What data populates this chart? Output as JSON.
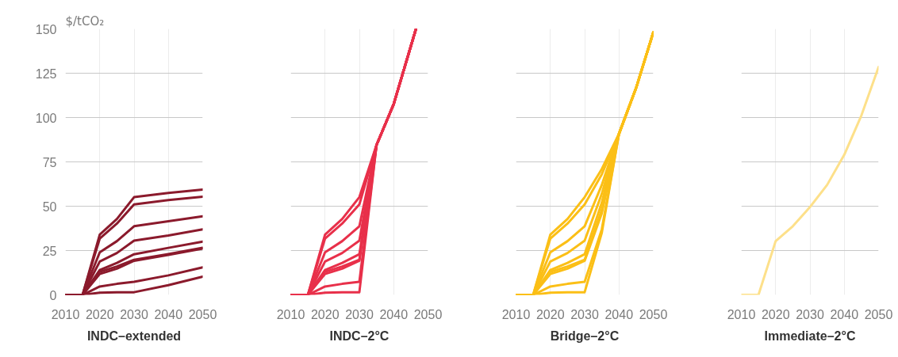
{
  "chart_data": [
    {
      "type": "line",
      "xlabel": "INDC–extended",
      "ylabel": "$/tCO₂",
      "x": [
        2010,
        2015,
        2020,
        2025,
        2030,
        2040,
        2050
      ],
      "xlim": [
        2010,
        2050
      ],
      "xticks": [
        2010,
        2020,
        2030,
        2040,
        2050
      ],
      "ylim": [
        0,
        150
      ],
      "yticks": [
        0,
        25,
        50,
        75,
        100,
        125,
        150
      ],
      "grid": true,
      "series": [
        {
          "color": "#8b1a2c",
          "values": [
            0,
            0,
            34,
            42.8,
            55.1,
            57.5,
            59.4
          ]
        },
        {
          "color": "#8b1a2c",
          "values": [
            0,
            0,
            31.8,
            40.2,
            51,
            53.5,
            55.4
          ]
        },
        {
          "color": "#8b1a2c",
          "values": [
            0,
            0,
            24,
            30.3,
            38.7,
            41.5,
            44.3
          ]
        },
        {
          "color": "#8b1a2c",
          "values": [
            0,
            0,
            18.8,
            23.6,
            30.6,
            33.5,
            36.9
          ]
        },
        {
          "color": "#8b1a2c",
          "values": [
            0,
            0,
            14,
            18,
            22.9,
            26.5,
            30
          ]
        },
        {
          "color": "#8b1a2c",
          "values": [
            0,
            0,
            13,
            16,
            19.8,
            23,
            26.6
          ]
        },
        {
          "color": "#8b1a2c",
          "values": [
            0,
            0,
            11.8,
            14.8,
            19.2,
            22.5,
            26.1
          ]
        },
        {
          "color": "#8b1a2c",
          "values": [
            0,
            0,
            4.7,
            6.2,
            7.4,
            11,
            15.5
          ]
        },
        {
          "color": "#8b1a2c",
          "values": [
            0,
            0,
            1.2,
            1.5,
            1.5,
            5.5,
            10.3
          ]
        }
      ]
    },
    {
      "type": "line",
      "xlabel": "INDC–2°C",
      "x": [
        2010,
        2015,
        2020,
        2025,
        2030,
        2035,
        2040,
        2046.5
      ],
      "xlim": [
        2010,
        2050
      ],
      "xticks": [
        2010,
        2020,
        2030,
        2040,
        2050
      ],
      "ylim": [
        0,
        150
      ],
      "yticks": [
        0,
        25,
        50,
        75,
        100,
        125,
        150
      ],
      "grid": true,
      "tick_labels": "x",
      "series": [
        {
          "color": "#e8304a",
          "values": [
            0,
            0,
            34,
            42.8,
            55.1,
            84.5,
            107.5,
            150
          ]
        },
        {
          "color": "#e8304a",
          "values": [
            0,
            0,
            31.8,
            40.2,
            51,
            84.5,
            107.5,
            150
          ]
        },
        {
          "color": "#e8304a",
          "values": [
            0,
            0,
            24,
            30.3,
            38.7,
            84.5,
            107.5,
            150
          ]
        },
        {
          "color": "#e8304a",
          "values": [
            0,
            0,
            18.8,
            23.6,
            30.6,
            84.5,
            107.5,
            150
          ]
        },
        {
          "color": "#e8304a",
          "values": [
            0,
            0,
            14,
            18,
            22.9,
            84.5,
            107.5,
            150
          ]
        },
        {
          "color": "#e8304a",
          "values": [
            0,
            0,
            13,
            16,
            19.8,
            84.5,
            107.5,
            150
          ]
        },
        {
          "color": "#e8304a",
          "values": [
            0,
            0,
            11.8,
            14.8,
            19.2,
            84.5,
            107.5,
            150
          ]
        },
        {
          "color": "#e8304a",
          "values": [
            0,
            0,
            4.7,
            6.2,
            7.4,
            84.5,
            107.5,
            150
          ]
        },
        {
          "color": "#e8304a",
          "values": [
            0,
            0,
            1.2,
            1.5,
            1.5,
            84.5,
            107.5,
            150
          ]
        }
      ]
    },
    {
      "type": "line",
      "xlabel": "Bridge–2°C",
      "x": [
        2010,
        2015,
        2020,
        2025,
        2030,
        2035,
        2040,
        2045,
        2050
      ],
      "xlim": [
        2010,
        2050
      ],
      "xticks": [
        2010,
        2020,
        2030,
        2040,
        2050
      ],
      "ylim": [
        0,
        150
      ],
      "yticks": [
        0,
        25,
        50,
        75,
        100,
        125,
        150
      ],
      "grid": true,
      "tick_labels": "x",
      "series": [
        {
          "color": "#fbbf16",
          "values": [
            0,
            0,
            34,
            42.8,
            55.1,
            71,
            90.8,
            116.7,
            148
          ]
        },
        {
          "color": "#fbbf16",
          "values": [
            0,
            0,
            31.8,
            40.2,
            51,
            68,
            90.8,
            116.7,
            148
          ]
        },
        {
          "color": "#fbbf16",
          "values": [
            0,
            0,
            24,
            30.3,
            38.7,
            62,
            90.8,
            116.7,
            148
          ]
        },
        {
          "color": "#fbbf16",
          "values": [
            0,
            0,
            18.8,
            23.6,
            30.6,
            57,
            90.8,
            116.7,
            148
          ]
        },
        {
          "color": "#fbbf16",
          "values": [
            0,
            0,
            14,
            18,
            22.9,
            52,
            90.8,
            116.7,
            148
          ]
        },
        {
          "color": "#fbbf16",
          "values": [
            0,
            0,
            13,
            16,
            19.8,
            48,
            90.8,
            116.7,
            148
          ]
        },
        {
          "color": "#fbbf16",
          "values": [
            0,
            0,
            11.8,
            14.8,
            19.2,
            46,
            90.8,
            116.7,
            148
          ]
        },
        {
          "color": "#fbbf16",
          "values": [
            0,
            0,
            4.7,
            6.2,
            7.4,
            37,
            90.8,
            116.7,
            148
          ]
        },
        {
          "color": "#fbbf16",
          "values": [
            0,
            0,
            1.2,
            1.5,
            1.5,
            35,
            90.8,
            116.7,
            148
          ]
        }
      ]
    },
    {
      "type": "line",
      "xlabel": "Immediate–2°C",
      "x": [
        2010,
        2015,
        2020,
        2025,
        2030,
        2035,
        2040,
        2045,
        2050
      ],
      "xlim": [
        2010,
        2050
      ],
      "xticks": [
        2010,
        2020,
        2030,
        2040,
        2050
      ],
      "ylim": [
        0,
        150
      ],
      "yticks": [
        0,
        25,
        50,
        75,
        100,
        125,
        150
      ],
      "grid": true,
      "tick_labels": "x",
      "series": [
        {
          "color": "#fde08a",
          "values": [
            0,
            0,
            30.3,
            38.7,
            49.5,
            62,
            79,
            101.2,
            128.5
          ]
        }
      ]
    }
  ]
}
